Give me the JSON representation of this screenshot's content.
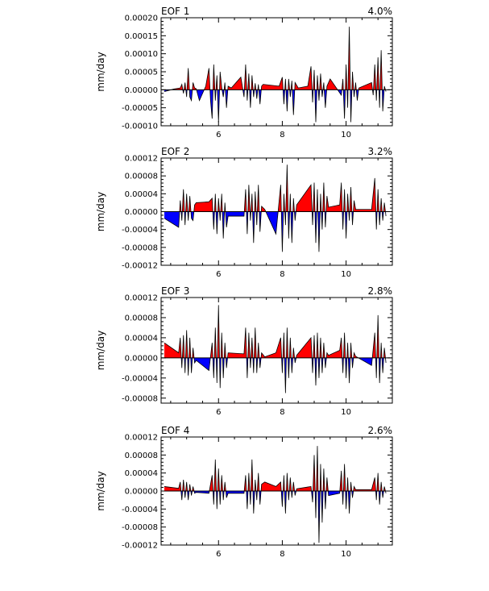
{
  "colors": {
    "positive": "#ff0000",
    "negative": "#0000ff",
    "line": "#000000"
  },
  "chart_data": [
    {
      "type": "area",
      "title": "EOF 1",
      "variance_label": "4.0%",
      "ylabel": "mm/day",
      "xlabel": "",
      "xlim": [
        4.2,
        11.45
      ],
      "ylim": [
        -0.0001,
        0.0002
      ],
      "xticks": [
        6,
        8,
        10
      ],
      "xtick_labels": [
        "6",
        "8",
        "10"
      ],
      "yticks": [
        -0.0001,
        -5e-05,
        0,
        5e-05,
        0.0001,
        0.00015,
        0.0002
      ],
      "ytick_labels": [
        "-0.00010",
        "-0.00005",
        "0.00000",
        "0.00005",
        "0.00010",
        "0.00015",
        "0.00020"
      ],
      "grid": false,
      "x": [
        4.3,
        4.6,
        4.8,
        4.85,
        4.9,
        4.95,
        5.0,
        5.05,
        5.1,
        5.15,
        5.2,
        5.25,
        5.3,
        5.4,
        5.6,
        5.7,
        5.75,
        5.8,
        5.85,
        5.9,
        5.95,
        6.0,
        6.05,
        6.1,
        6.15,
        6.2,
        6.25,
        6.3,
        6.4,
        6.7,
        6.8,
        6.85,
        6.9,
        6.95,
        7.0,
        7.05,
        7.1,
        7.15,
        7.2,
        7.25,
        7.3,
        7.35,
        7.4,
        7.9,
        8.0,
        8.05,
        8.1,
        8.15,
        8.2,
        8.25,
        8.3,
        8.35,
        8.4,
        8.5,
        8.8,
        8.9,
        8.95,
        9.0,
        9.05,
        9.1,
        9.15,
        9.2,
        9.25,
        9.3,
        9.35,
        9.4,
        9.5,
        9.85,
        9.9,
        9.95,
        10.0,
        10.05,
        10.1,
        10.15,
        10.2,
        10.25,
        10.3,
        10.35,
        10.4,
        10.8,
        10.85,
        10.9,
        10.95,
        11.0,
        11.05,
        11.1,
        11.15,
        11.2,
        11.25
      ],
      "y": [
        -5e-06,
        2e-06,
        5e-06,
        1.5e-05,
        -1e-05,
        2e-05,
        -2e-05,
        6e-05,
        -2e-05,
        -3e-05,
        2e-05,
        5e-06,
        3e-06,
        -3e-05,
        1e-05,
        6e-05,
        -3e-05,
        -8e-05,
        7e-05,
        -3e-05,
        4e-05,
        -9e-05,
        5e-05,
        6e-06,
        -2e-05,
        2e-05,
        -5e-05,
        1e-05,
        5e-06,
        3.5e-05,
        -2e-05,
        7e-05,
        -3e-05,
        4.5e-05,
        -5e-05,
        4e-05,
        -2e-05,
        1.8e-05,
        -2.5e-05,
        1.5e-05,
        -4e-05,
        1e-05,
        1.5e-05,
        1e-05,
        3.5e-05,
        -4e-05,
        3e-05,
        -6e-05,
        3e-05,
        -2e-05,
        2.5e-05,
        -7e-05,
        2e-05,
        5e-06,
        1e-05,
        6.5e-05,
        -3.5e-05,
        5.5e-05,
        -9e-05,
        4e-05,
        -3e-05,
        4.5e-05,
        -2e-05,
        2e-05,
        -5e-05,
        1e-05,
        3e-05,
        -1.5e-05,
        3e-05,
        -8e-05,
        7e-05,
        -5e-05,
        0.000175,
        -9e-05,
        5e-05,
        -2e-05,
        2e-05,
        -3e-05,
        5e-06,
        2e-05,
        -1.5e-05,
        7e-05,
        -3e-05,
        9e-05,
        -5e-05,
        0.00011,
        -6e-05,
        1e-05,
        -5e-06
      ]
    },
    {
      "type": "area",
      "title": "EOF 2",
      "variance_label": "3.2%",
      "ylabel": "mm/day",
      "xlabel": "",
      "xlim": [
        4.2,
        11.45
      ],
      "ylim": [
        -0.00012,
        0.00012
      ],
      "xticks": [
        6,
        8,
        10
      ],
      "xtick_labels": [
        "6",
        "8",
        "10"
      ],
      "yticks": [
        -0.00012,
        -8e-05,
        -4e-05,
        0,
        4e-05,
        8e-05,
        0.00012
      ],
      "ytick_labels": [
        "-0.00012",
        "-0.00008",
        "-0.00004",
        "0.00000",
        "0.00004",
        "0.00008",
        "0.00012"
      ],
      "grid": false,
      "x": [
        4.3,
        4.75,
        4.8,
        4.85,
        4.9,
        4.95,
        5.0,
        5.05,
        5.1,
        5.15,
        5.2,
        5.25,
        5.3,
        5.7,
        5.8,
        5.85,
        5.9,
        5.95,
        6.0,
        6.05,
        6.1,
        6.15,
        6.2,
        6.25,
        6.3,
        6.8,
        6.85,
        6.9,
        6.95,
        7.0,
        7.05,
        7.1,
        7.15,
        7.2,
        7.25,
        7.3,
        7.35,
        7.45,
        7.8,
        7.95,
        8.0,
        8.05,
        8.1,
        8.15,
        8.2,
        8.25,
        8.3,
        8.35,
        8.4,
        8.45,
        8.9,
        8.95,
        9.0,
        9.05,
        9.1,
        9.15,
        9.2,
        9.25,
        9.3,
        9.35,
        9.4,
        9.45,
        9.8,
        9.85,
        9.9,
        9.95,
        10.0,
        10.05,
        10.1,
        10.15,
        10.2,
        10.25,
        10.3,
        10.8,
        10.9,
        10.95,
        11.0,
        11.05,
        11.1,
        11.15,
        11.2,
        11.25
      ],
      "y": [
        -1.5e-05,
        -3.5e-05,
        2.5e-05,
        -2e-05,
        5e-05,
        -3e-05,
        4e-05,
        -2e-05,
        3.5e-05,
        -1.5e-05,
        -2e-05,
        1.5e-05,
        2e-05,
        2.2e-05,
        3e-05,
        -4e-05,
        4e-05,
        -5e-05,
        3e-05,
        -2e-05,
        4e-05,
        -6e-05,
        2e-05,
        -3.5e-05,
        -1e-05,
        -1e-05,
        5e-05,
        -5e-05,
        6e-05,
        -2e-05,
        4e-05,
        -7e-05,
        4.5e-05,
        -3e-05,
        6e-05,
        -4.5e-05,
        1.2e-05,
        5e-06,
        -5e-05,
        6e-05,
        -9e-05,
        4e-05,
        -3e-05,
        0.000105,
        -6e-05,
        4e-05,
        -7e-05,
        3e-05,
        -2e-05,
        1.5e-05,
        6e-05,
        -3e-05,
        6.5e-05,
        -7e-05,
        5e-05,
        -9e-05,
        4e-05,
        -4e-05,
        6.5e-05,
        -3.5e-05,
        3.5e-05,
        1e-05,
        1.5e-05,
        6.5e-05,
        -4e-05,
        5e-05,
        -6e-05,
        4e-05,
        -2e-05,
        5.5e-05,
        -3e-05,
        2.5e-05,
        5e-06,
        5e-06,
        7.5e-05,
        -4e-05,
        5e-05,
        -3e-05,
        3e-05,
        -2e-05,
        2e-05,
        -1e-05
      ]
    },
    {
      "type": "area",
      "title": "EOF 3",
      "variance_label": "2.8%",
      "ylabel": "mm/day",
      "xlabel": "",
      "xlim": [
        4.2,
        11.45
      ],
      "ylim": [
        -9e-05,
        0.00012
      ],
      "xticks": [
        6,
        8,
        10
      ],
      "xtick_labels": [
        "6",
        "8",
        "10"
      ],
      "yticks": [
        -8e-05,
        -4e-05,
        0,
        4e-05,
        8e-05,
        0.00012
      ],
      "ytick_labels": [
        "-0.00008",
        "-0.00004",
        "0.00000",
        "0.00004",
        "0.00008",
        "0.00012"
      ],
      "grid": false,
      "x": [
        4.3,
        4.75,
        4.8,
        4.85,
        4.9,
        4.95,
        5.0,
        5.05,
        5.1,
        5.15,
        5.2,
        5.25,
        5.3,
        5.7,
        5.8,
        5.85,
        5.9,
        5.95,
        6.0,
        6.05,
        6.1,
        6.15,
        6.2,
        6.25,
        6.3,
        6.8,
        6.85,
        6.9,
        6.95,
        7.0,
        7.05,
        7.1,
        7.15,
        7.2,
        7.25,
        7.3,
        7.35,
        7.45,
        7.8,
        7.95,
        8.0,
        8.05,
        8.1,
        8.15,
        8.2,
        8.25,
        8.3,
        8.35,
        8.4,
        8.45,
        8.9,
        8.95,
        9.0,
        9.05,
        9.1,
        9.15,
        9.2,
        9.25,
        9.3,
        9.35,
        9.4,
        9.45,
        9.8,
        9.85,
        9.9,
        9.95,
        10.0,
        10.05,
        10.1,
        10.15,
        10.2,
        10.25,
        10.3,
        10.8,
        10.9,
        10.95,
        11.0,
        11.05,
        11.1,
        11.15,
        11.2,
        11.25
      ],
      "y": [
        3e-05,
        1e-05,
        4e-05,
        -2e-05,
        4.5e-05,
        -3e-05,
        5.5e-05,
        -3.5e-05,
        4e-05,
        -3e-05,
        2e-05,
        -1e-05,
        -5e-06,
        -2.5e-05,
        3e-05,
        -4e-05,
        6e-05,
        -5e-05,
        0.000105,
        -6e-05,
        5e-05,
        -4e-05,
        3e-05,
        -2e-05,
        1e-05,
        8e-06,
        6e-05,
        -4e-05,
        5e-05,
        -2e-05,
        4e-05,
        -3e-05,
        6e-05,
        -3e-05,
        3e-05,
        -2e-05,
        1e-05,
        2e-06,
        1e-05,
        4e-05,
        -3e-05,
        5e-05,
        -7e-05,
        6e-05,
        -4e-05,
        4e-05,
        -3e-05,
        2e-05,
        -1e-05,
        5e-06,
        4e-05,
        -3e-05,
        4.5e-05,
        -5.5e-05,
        5e-05,
        -4e-05,
        4e-05,
        -3e-05,
        3e-05,
        -2e-05,
        1e-05,
        5e-06,
        1.5e-05,
        4e-05,
        -3e-05,
        5e-05,
        -4e-05,
        3e-05,
        -5e-05,
        3e-05,
        -2e-05,
        1e-05,
        3e-06,
        -1.5e-05,
        5e-05,
        -4e-05,
        8.5e-05,
        -5e-05,
        3e-05,
        -3e-05,
        2e-05,
        -1e-05
      ]
    },
    {
      "type": "area",
      "title": "EOF 4",
      "variance_label": "2.6%",
      "ylabel": "mm/day",
      "xlabel": "",
      "xlim": [
        4.2,
        11.45
      ],
      "ylim": [
        -0.00012,
        0.00012
      ],
      "xticks": [
        6,
        8,
        10
      ],
      "xtick_labels": [
        "6",
        "8",
        "10"
      ],
      "yticks": [
        -0.00012,
        -8e-05,
        -4e-05,
        0,
        4e-05,
        8e-05,
        0.00012
      ],
      "ytick_labels": [
        "-0.00012",
        "-0.00008",
        "-0.00004",
        "0.00000",
        "0.00004",
        "0.00008",
        "0.00012"
      ],
      "grid": false,
      "x": [
        4.3,
        4.75,
        4.8,
        4.85,
        4.9,
        4.95,
        5.0,
        5.05,
        5.1,
        5.15,
        5.2,
        5.25,
        5.3,
        5.7,
        5.8,
        5.85,
        5.9,
        5.95,
        6.0,
        6.05,
        6.1,
        6.15,
        6.2,
        6.25,
        6.3,
        6.8,
        6.85,
        6.9,
        6.95,
        7.0,
        7.05,
        7.1,
        7.15,
        7.2,
        7.25,
        7.3,
        7.35,
        7.45,
        7.8,
        7.95,
        8.0,
        8.05,
        8.1,
        8.15,
        8.2,
        8.25,
        8.3,
        8.35,
        8.4,
        8.45,
        8.9,
        8.95,
        9.0,
        9.05,
        9.1,
        9.15,
        9.2,
        9.25,
        9.3,
        9.35,
        9.4,
        9.45,
        9.8,
        9.85,
        9.9,
        9.95,
        10.0,
        10.05,
        10.1,
        10.15,
        10.2,
        10.25,
        10.3,
        10.8,
        10.9,
        10.95,
        11.0,
        11.05,
        11.1,
        11.15,
        11.2,
        11.25
      ],
      "y": [
        1e-05,
        6e-06,
        2e-05,
        -2e-05,
        2.5e-05,
        -1.5e-05,
        2e-05,
        -2e-05,
        1.5e-05,
        -1e-05,
        1e-05,
        -5e-06,
        -3e-06,
        -5e-06,
        3.5e-05,
        -3e-05,
        7e-05,
        -4e-05,
        5e-05,
        -3e-05,
        3.5e-05,
        -2e-05,
        2e-05,
        -1.5e-05,
        -5e-06,
        -5e-06,
        3.5e-05,
        -4e-05,
        4e-05,
        -3e-05,
        7e-05,
        -5e-05,
        2.5e-05,
        -2e-05,
        4e-05,
        -3e-05,
        1.5e-05,
        2e-05,
        1e-05,
        2e-05,
        -3.5e-05,
        3.5e-05,
        -5e-05,
        4e-05,
        -2e-05,
        3e-05,
        -1.5e-05,
        2e-05,
        -1e-05,
        5e-06,
        1e-05,
        -2.5e-05,
        8e-05,
        -6e-05,
        0.0001,
        -0.000115,
        6e-05,
        -7e-05,
        5e-05,
        -4e-05,
        3e-05,
        -1e-05,
        -5e-06,
        4.5e-05,
        -3e-05,
        6e-05,
        -4e-05,
        3e-05,
        -5e-05,
        2e-05,
        -1.5e-05,
        1e-05,
        3e-06,
        3e-06,
        3e-05,
        -2e-05,
        4e-05,
        -3e-05,
        2e-05,
        -1.5e-05,
        1e-05,
        -5e-06
      ]
    }
  ]
}
